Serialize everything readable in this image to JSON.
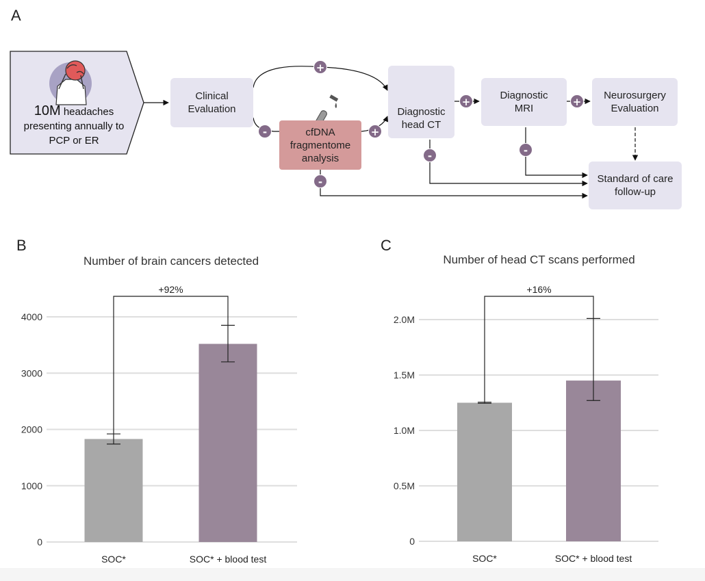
{
  "panels": {
    "a": "A",
    "b": "B",
    "c": "C"
  },
  "flow": {
    "start": {
      "big": "10M",
      "line1_rest": " headaches",
      "line2": "presenting annually to",
      "line3": "PCP or ER"
    },
    "clinical": "Clinical\nEvaluation",
    "cfdna": "cfDNA\nfragmentome\nanalysis",
    "ct": "Diagnostic\nhead CT",
    "mri": "Diagnostic\nMRI",
    "neuro": "Neurosurgery\nEvaluation",
    "soc": "Standard of care\nfollow-up",
    "plus": "+",
    "minus": "-",
    "icons": [
      "headache-person-icon",
      "test-tube-icon",
      "ct-scanner-icon"
    ],
    "colors": {
      "box": "#e6e4f0",
      "cfdna": "#d49a9a",
      "sign": "#836a88",
      "headache": "#e05a5a"
    }
  },
  "chart_data": [
    {
      "type": "bar",
      "title": "Number of brain cancers detected",
      "categories": [
        "SOC*",
        "SOC* + blood test"
      ],
      "values": [
        1830,
        3520
      ],
      "error_low": [
        1740,
        3200
      ],
      "error_high": [
        1920,
        3850
      ],
      "yticks": [
        "0",
        "1000",
        "2000",
        "3000",
        "4000"
      ],
      "ytick_values": [
        0,
        1000,
        2000,
        3000,
        4000
      ],
      "ylim": [
        0,
        4000
      ],
      "annotation": "+92%",
      "colors": [
        "#a8a8a8",
        "#998799"
      ],
      "grid": true
    },
    {
      "type": "bar",
      "title": "Number of head CT scans performed",
      "categories": [
        "SOC*",
        "SOC* + blood test"
      ],
      "values": [
        1250000,
        1450000
      ],
      "error_low": [
        1245000,
        1270000
      ],
      "error_high": [
        1255000,
        2010000
      ],
      "yticks": [
        "0",
        "0.5M",
        "1.0M",
        "1.5M",
        "2.0M"
      ],
      "ytick_values": [
        0,
        500000,
        1000000,
        1500000,
        2000000
      ],
      "ylim": [
        0,
        2000000
      ],
      "annotation": "+16%",
      "colors": [
        "#a8a8a8",
        "#998799"
      ],
      "grid": true
    }
  ]
}
